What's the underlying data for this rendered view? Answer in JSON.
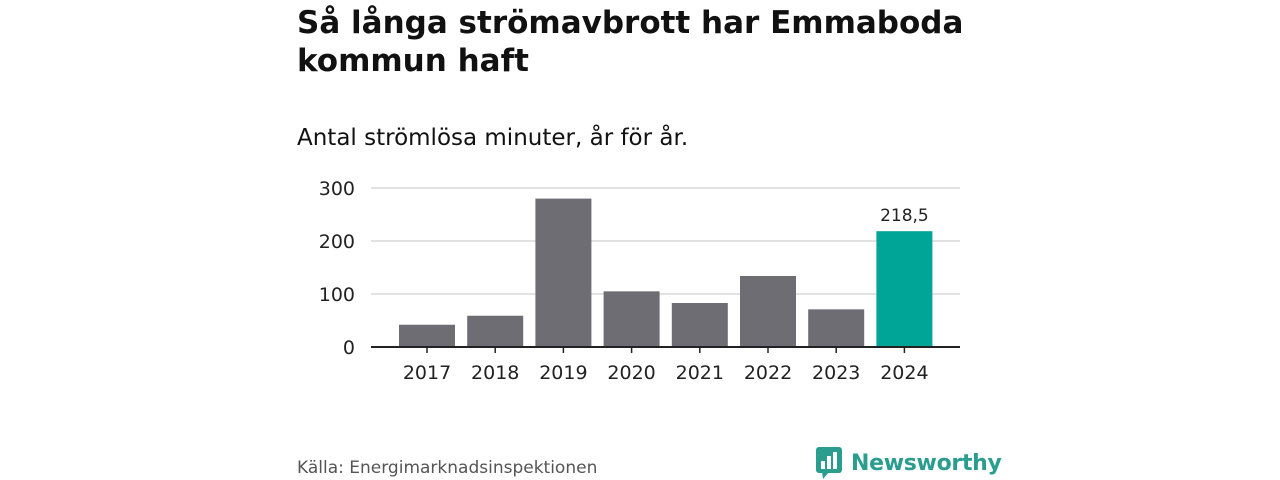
{
  "title": "Så långa strömavbrott har Emmaboda kommun haft",
  "subtitle": "Antal strömlösa minuter, år för år.",
  "source": "Källa: Energimarknadsinspektionen",
  "brand": {
    "name": "Newsworthy",
    "logo_icon": "bar-chart-speech-bubble-icon"
  },
  "colors": {
    "bar": "#6d6d73",
    "highlight": "#00a597",
    "grid": "#d9d9d9",
    "axis": "#222222",
    "brand": "#2a9d8f"
  },
  "chart_data": {
    "type": "bar",
    "title": "Så långa strömavbrott har Emmaboda kommun haft",
    "subtitle": "Antal strömlösa minuter, år för år.",
    "categories": [
      "2017",
      "2018",
      "2019",
      "2020",
      "2021",
      "2022",
      "2023",
      "2024"
    ],
    "values": [
      42,
      59,
      280,
      105,
      83,
      134,
      71,
      218.5
    ],
    "highlight_index": 7,
    "highlight_label": "218,5",
    "y_ticks": [
      0,
      100,
      200,
      300
    ],
    "y_tick_labels": [
      "0",
      "100",
      "200",
      "300"
    ],
    "ylim": [
      0,
      300
    ],
    "grid": true,
    "xlabel": "",
    "ylabel": ""
  }
}
